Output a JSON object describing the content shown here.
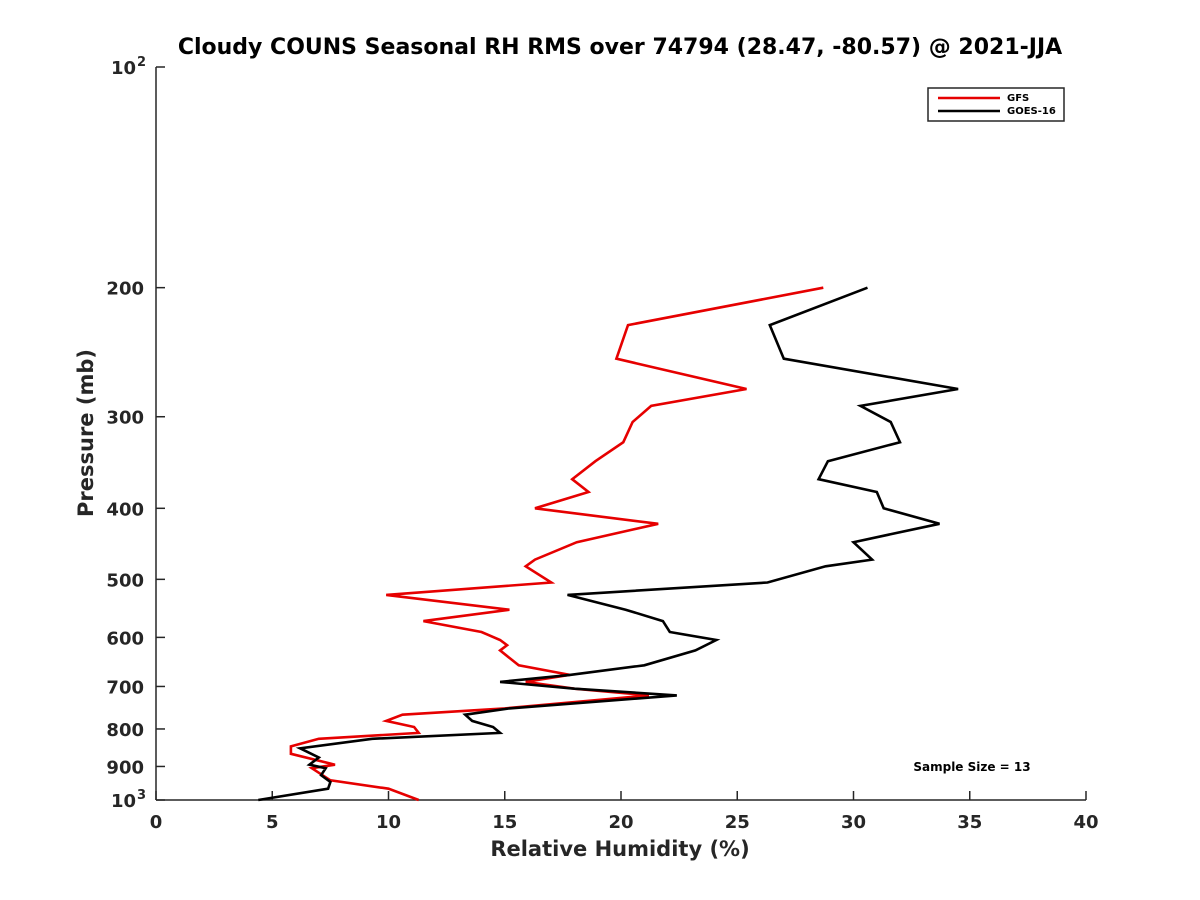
{
  "chart_data": {
    "type": "line",
    "title": "Cloudy COUNS Seasonal RH RMS over 74794 (28.47, -80.57) @ 2021-JJA",
    "xlabel": "Relative Humidity (%)",
    "ylabel": "Pressure (mb)",
    "xlim": [
      0,
      40
    ],
    "ylim": [
      100,
      1000
    ],
    "yscale": "log",
    "yreverse": true,
    "xticks": [
      0,
      5,
      10,
      15,
      20,
      25,
      30,
      35,
      40
    ],
    "yticks": [
      {
        "value": 100,
        "label": "10",
        "sup": "2"
      },
      {
        "value": 200,
        "label": "200",
        "sup": ""
      },
      {
        "value": 300,
        "label": "300",
        "sup": ""
      },
      {
        "value": 400,
        "label": "400",
        "sup": ""
      },
      {
        "value": 500,
        "label": "500",
        "sup": ""
      },
      {
        "value": 600,
        "label": "600",
        "sup": ""
      },
      {
        "value": 700,
        "label": "700",
        "sup": ""
      },
      {
        "value": 800,
        "label": "800",
        "sup": ""
      },
      {
        "value": 900,
        "label": "900",
        "sup": ""
      },
      {
        "value": 1000,
        "label": "10",
        "sup": "3"
      }
    ],
    "legend_position": "top-right",
    "sample_size_text": "Sample Size = 13",
    "series": [
      {
        "name": "GFS",
        "color": "#e60000",
        "points": [
          [
            28.7,
            200
          ],
          [
            20.3,
            225
          ],
          [
            19.8,
            250
          ],
          [
            25.4,
            275
          ],
          [
            21.3,
            290
          ],
          [
            20.5,
            305
          ],
          [
            20.1,
            325
          ],
          [
            18.9,
            345
          ],
          [
            17.9,
            365
          ],
          [
            18.6,
            380
          ],
          [
            16.3,
            400
          ],
          [
            21.6,
            420
          ],
          [
            18.1,
            445
          ],
          [
            16.3,
            470
          ],
          [
            15.9,
            480
          ],
          [
            17.0,
            505
          ],
          [
            9.9,
            525
          ],
          [
            15.2,
            550
          ],
          [
            11.5,
            570
          ],
          [
            14.0,
            590
          ],
          [
            14.8,
            605
          ],
          [
            15.1,
            615
          ],
          [
            14.8,
            625
          ],
          [
            15.6,
            655
          ],
          [
            17.8,
            675
          ],
          [
            15.9,
            690
          ],
          [
            18.0,
            705
          ],
          [
            21.2,
            720
          ],
          [
            15.0,
            750
          ],
          [
            10.6,
            765
          ],
          [
            9.9,
            780
          ],
          [
            11.1,
            795
          ],
          [
            11.3,
            810
          ],
          [
            7.0,
            825
          ],
          [
            5.8,
            845
          ],
          [
            5.8,
            865
          ],
          [
            7.7,
            895
          ],
          [
            6.7,
            905
          ],
          [
            7.5,
            940
          ],
          [
            10.0,
            965
          ],
          [
            11.3,
            1000
          ]
        ]
      },
      {
        "name": "GOES-16",
        "color": "#000000",
        "points": [
          [
            30.6,
            200
          ],
          [
            26.4,
            225
          ],
          [
            27.0,
            250
          ],
          [
            34.5,
            275
          ],
          [
            30.3,
            290
          ],
          [
            31.6,
            305
          ],
          [
            32.0,
            325
          ],
          [
            28.9,
            345
          ],
          [
            28.5,
            365
          ],
          [
            31.0,
            380
          ],
          [
            31.3,
            400
          ],
          [
            33.7,
            420
          ],
          [
            30.0,
            445
          ],
          [
            30.8,
            470
          ],
          [
            28.8,
            480
          ],
          [
            26.3,
            505
          ],
          [
            17.7,
            525
          ],
          [
            20.2,
            550
          ],
          [
            21.8,
            570
          ],
          [
            22.1,
            590
          ],
          [
            24.1,
            605
          ],
          [
            23.2,
            625
          ],
          [
            21.0,
            655
          ],
          [
            17.8,
            675
          ],
          [
            14.8,
            690
          ],
          [
            18.0,
            705
          ],
          [
            22.4,
            720
          ],
          [
            15.2,
            750
          ],
          [
            13.3,
            765
          ],
          [
            13.6,
            780
          ],
          [
            14.5,
            795
          ],
          [
            14.8,
            810
          ],
          [
            9.3,
            825
          ],
          [
            6.2,
            850
          ],
          [
            7.0,
            875
          ],
          [
            6.6,
            895
          ],
          [
            7.3,
            905
          ],
          [
            7.1,
            925
          ],
          [
            7.5,
            945
          ],
          [
            7.4,
            965
          ],
          [
            4.4,
            1000
          ]
        ]
      }
    ]
  }
}
